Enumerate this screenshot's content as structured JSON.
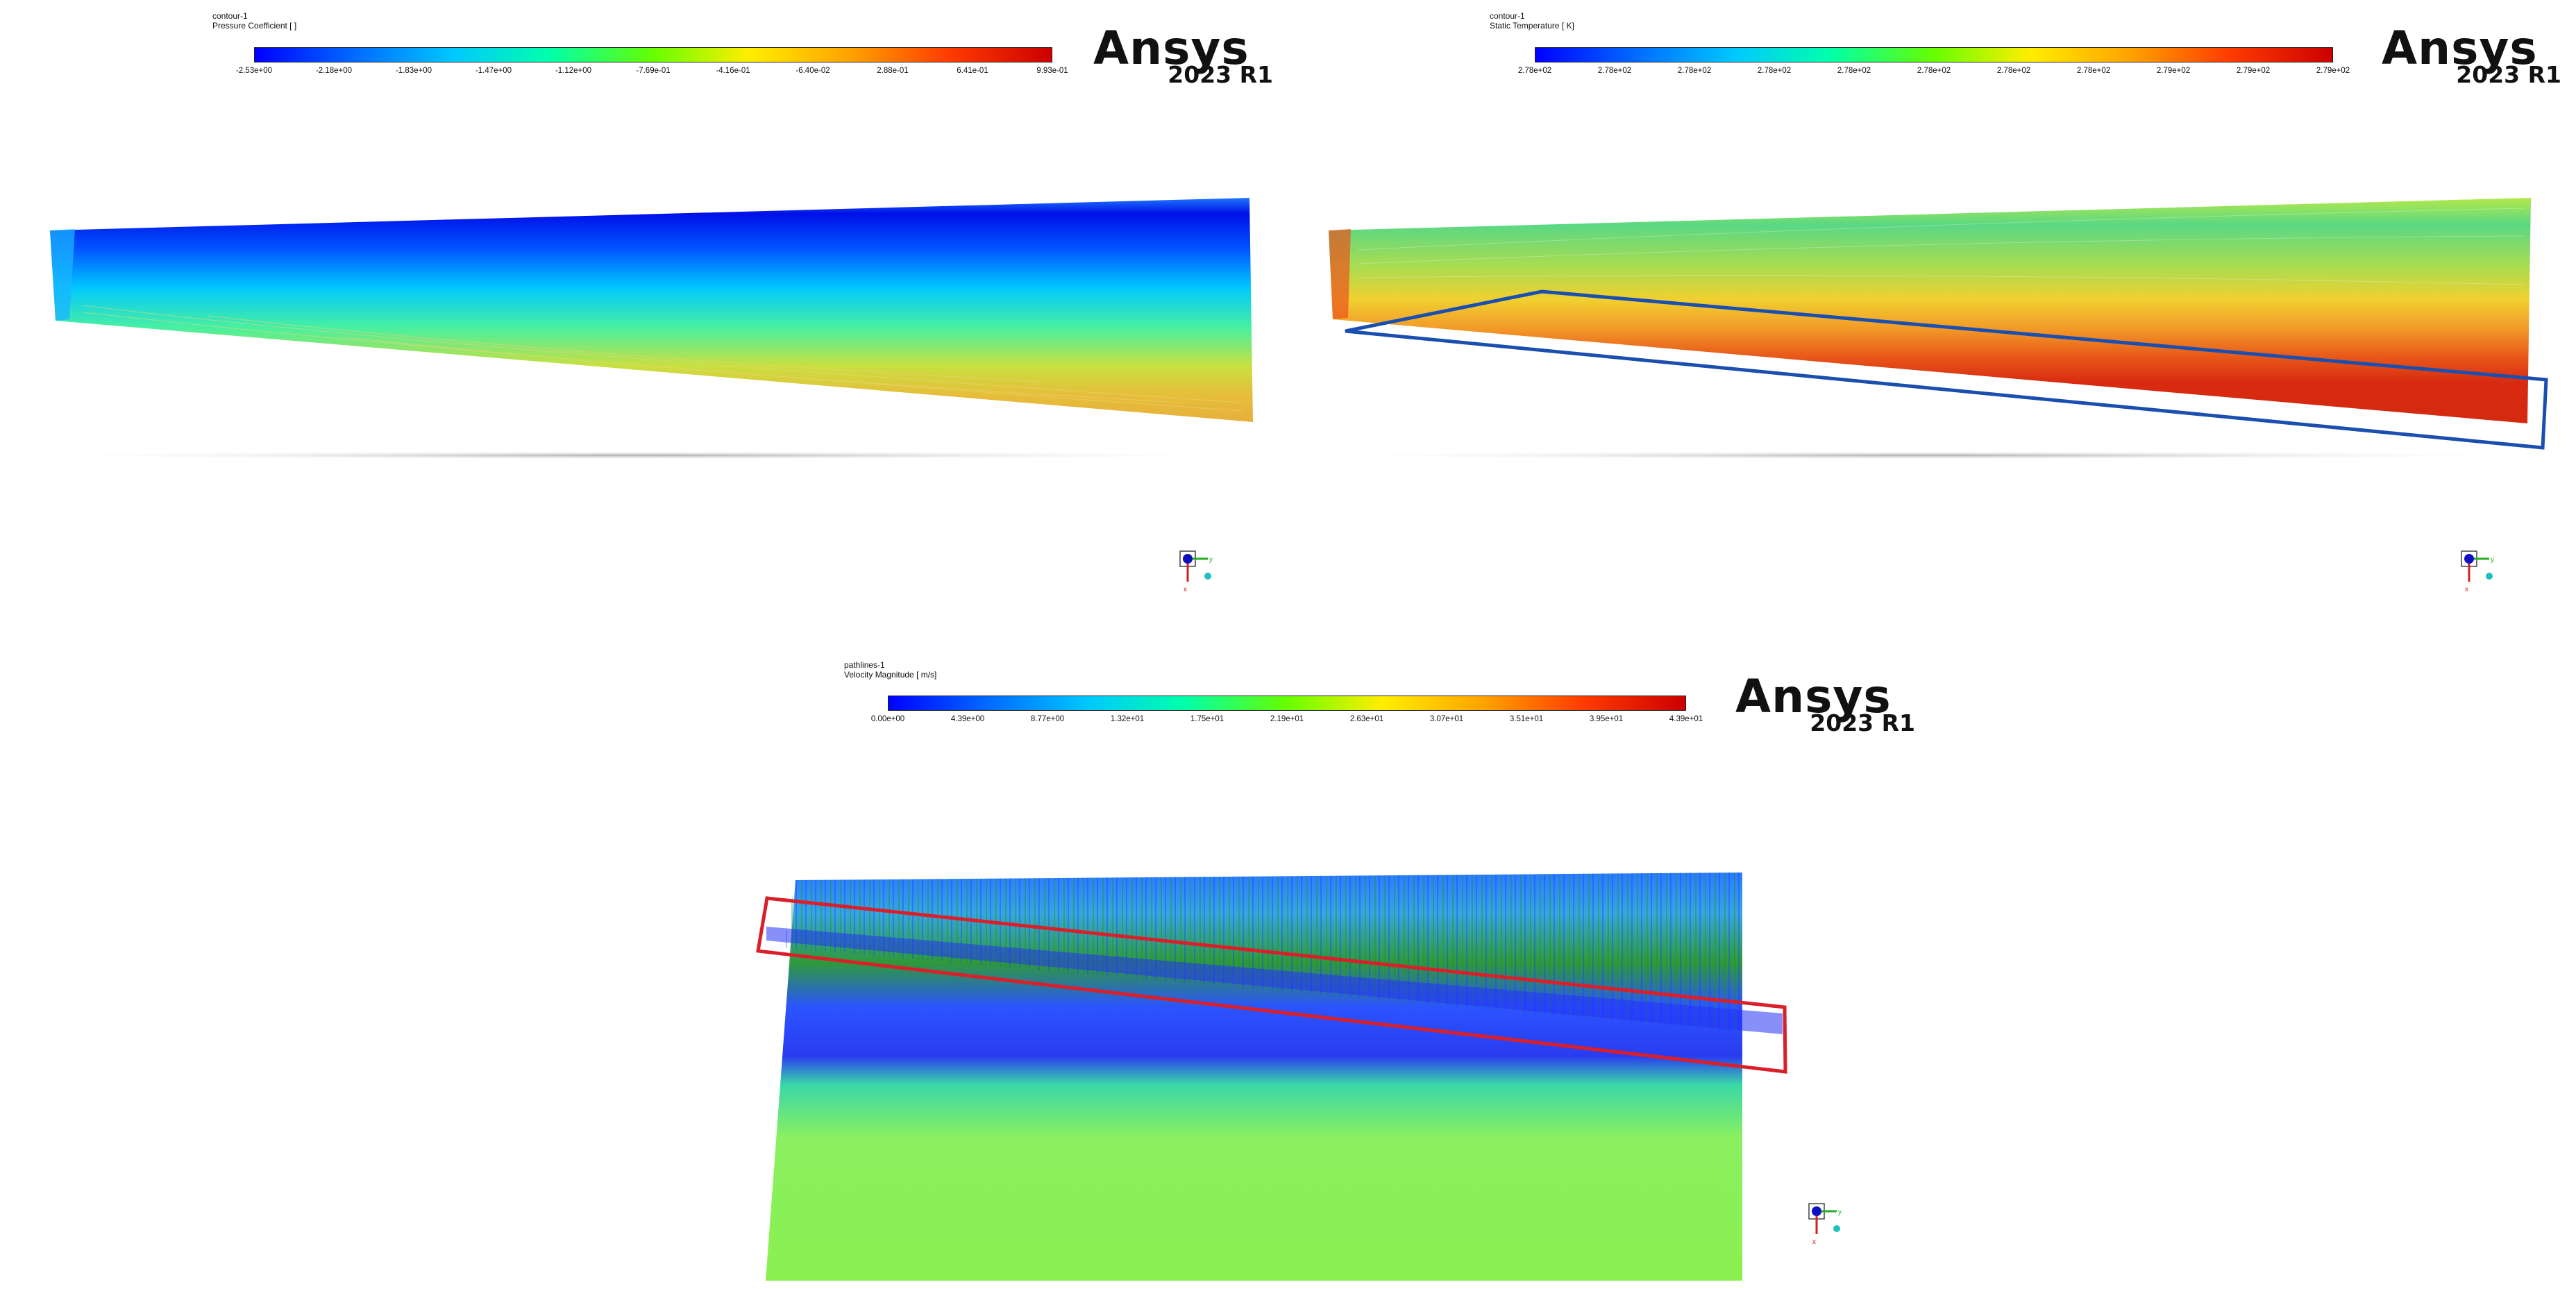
{
  "panels": [
    {
      "object_name": "contour-1",
      "variable_label": "Pressure Coefficient [  ]",
      "tick_labels": [
        "-2.53e+00",
        "-2.18e+00",
        "-1.83e+00",
        "-1.47e+00",
        "-1.12e+00",
        "-7.69e-01",
        "-4.16e-01",
        "-6.40e-02",
        "2.88e-01",
        "6.41e-01",
        "9.93e-01"
      ],
      "logo_text": "Ansys",
      "version_text": "2023 R1"
    },
    {
      "object_name": "contour-1",
      "variable_label": "Static Temperature [ K]",
      "tick_labels": [
        "2.78e+02",
        "2.78e+02",
        "2.78e+02",
        "2.78e+02",
        "2.78e+02",
        "2.78e+02",
        "2.78e+02",
        "2.78e+02",
        "2.79e+02",
        "2.79e+02",
        "2.79e+02"
      ],
      "logo_text": "Ansys",
      "version_text": "2023 R1"
    },
    {
      "object_name": "pathlines-1",
      "variable_label": "Velocity Magnitude [ m/s]",
      "tick_labels": [
        "0.00e+00",
        "4.39e+00",
        "8.77e+00",
        "1.32e+01",
        "1.75e+01",
        "2.19e+01",
        "2.63e+01",
        "3.07e+01",
        "3.51e+01",
        "3.95e+01",
        "4.39e+01"
      ],
      "logo_text": "Ansys",
      "version_text": "2023 R1"
    }
  ],
  "colors": {
    "colormap": [
      "#0000ff",
      "#0066ff",
      "#00c8ff",
      "#00ffaa",
      "#66ff00",
      "#ffee00",
      "#ffa000",
      "#ff3c00",
      "#cc0000"
    ],
    "highlight_blue": "#1a4fb0",
    "highlight_red": "#d9202a"
  },
  "icons": {
    "triad": "axis-triad-icon"
  }
}
